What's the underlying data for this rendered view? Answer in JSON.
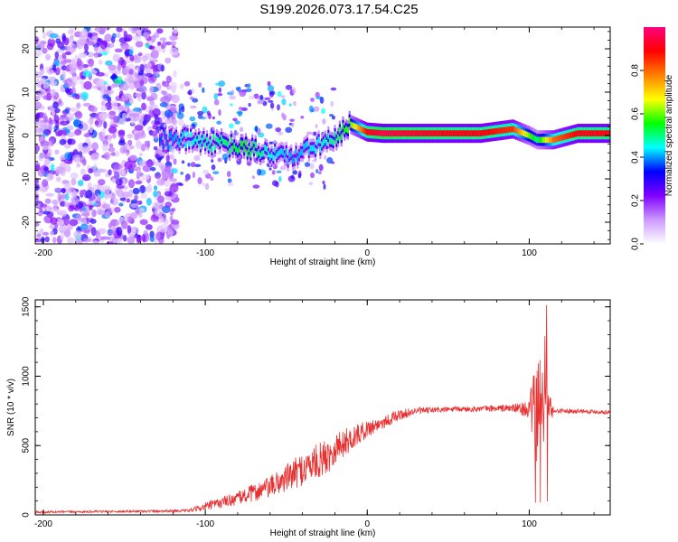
{
  "title": "S199.2026.073.17.54.C25",
  "chart_data": [
    {
      "type": "heatmap",
      "xlabel": "Height of straight line (km)",
      "ylabel": "Frequency (Hz)",
      "xlim": [
        -205,
        150
      ],
      "ylim": [
        -25,
        25
      ],
      "xticks": [
        -200,
        -100,
        0,
        100
      ],
      "yticks": [
        -20,
        -10,
        0,
        10,
        20
      ],
      "colorbar": {
        "label": "Normalized spectral amplitude",
        "range": [
          0,
          1
        ],
        "ticks": [
          0.0,
          0.2,
          0.4,
          0.6,
          0.8
        ],
        "colors": [
          "#ffffff",
          "#cc99ff",
          "#8000ff",
          "#0000ff",
          "#00ffff",
          "#00ff00",
          "#ffff00",
          "#ff8000",
          "#ff0000",
          "#ff0080"
        ]
      },
      "ridge": {
        "x": [
          -130,
          -110,
          -90,
          -75,
          -60,
          -45,
          -30,
          -20,
          -10,
          0,
          10,
          30,
          50,
          70,
          90,
          100,
          105,
          115,
          130,
          150
        ],
        "freq": [
          -1,
          -1,
          -2,
          -3,
          -4,
          -5,
          -2,
          -1,
          2.5,
          0.8,
          0.5,
          0.5,
          0.5,
          0.5,
          1.5,
          0,
          -1,
          -1,
          0.5,
          0.5
        ],
        "amplitude": [
          0.35,
          0.45,
          0.5,
          0.55,
          0.45,
          0.4,
          0.45,
          0.5,
          0.6,
          0.9,
          0.95,
          0.92,
          0.9,
          0.9,
          0.85,
          0.6,
          0.5,
          0.8,
          0.9,
          0.9
        ]
      }
    },
    {
      "type": "line",
      "xlabel": "Height of straight line (km)",
      "ylabel": "SNR (10 * v/v)",
      "xlim": [
        -205,
        150
      ],
      "ylim": [
        0,
        1550
      ],
      "xticks": [
        -200,
        -100,
        0,
        100
      ],
      "yticks": [
        0,
        500,
        1000,
        1500
      ],
      "color": "#e83030",
      "envelope": {
        "x": [
          -205,
          -150,
          -110,
          -100,
          -80,
          -60,
          -40,
          -25,
          -20,
          0,
          20,
          30,
          50,
          70,
          90,
          100,
          104,
          106,
          110,
          115,
          130,
          150
        ],
        "y": [
          20,
          25,
          30,
          60,
          120,
          200,
          330,
          420,
          480,
          620,
          720,
          750,
          760,
          765,
          770,
          760,
          740,
          720,
          740,
          750,
          750,
          740
        ],
        "noise": [
          8,
          8,
          10,
          30,
          50,
          80,
          120,
          130,
          120,
          60,
          40,
          25,
          20,
          20,
          30,
          60,
          400,
          500,
          250,
          20,
          15,
          15
        ]
      }
    }
  ]
}
